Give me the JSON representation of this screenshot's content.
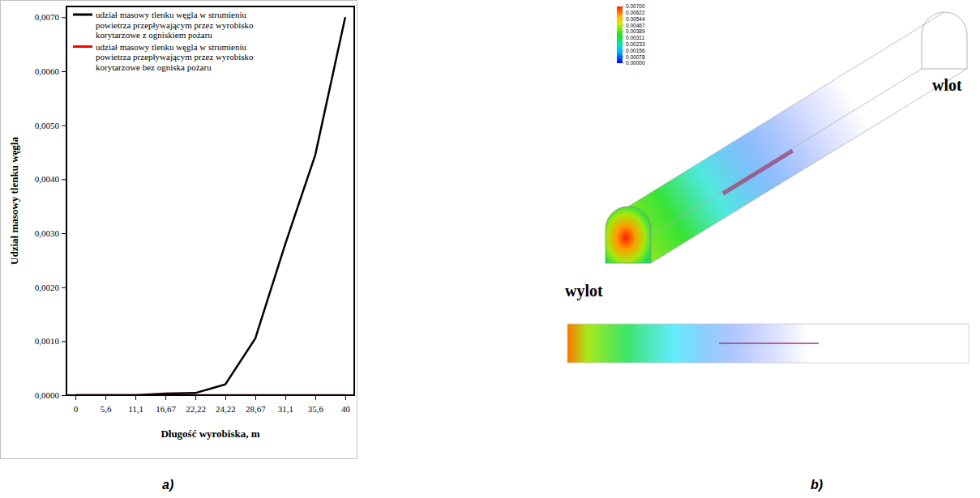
{
  "chart_data": [
    {
      "type": "line",
      "panel_label": "a)",
      "xlabel": "Długość wyrobiska, m",
      "ylabel": "Udział masowy tlenku węgla",
      "categories": [
        "0",
        "5,6",
        "11,1",
        "16,67",
        "22,22",
        "24,22",
        "28,67",
        "31,1",
        "35,6",
        "40"
      ],
      "series": [
        {
          "name": "udział masowy tlenku węgla w strumieniu powietrza przepływającym przez wyrobisko korytarzowe z ogniskiem pożaru",
          "color": "#000000",
          "values": [
            0,
            0,
            0,
            3e-05,
            4e-05,
            0.0002,
            0.00105,
            0.0028,
            0.00445,
            0.007
          ]
        },
        {
          "name": "udział masowy tlenku węgla w strumieniu powietrza przepływającym przez wyrobisko korytarzowe bez ogniska pożaru",
          "color": "#ff0000",
          "values": [
            0,
            0,
            0,
            0,
            0,
            0,
            0,
            0,
            0,
            0
          ]
        }
      ],
      "ylim": [
        0,
        0.0072
      ],
      "yticks": [
        {
          "value": 0,
          "label": "0,0000"
        },
        {
          "value": 0.001,
          "label": "0,0010"
        },
        {
          "value": 0.002,
          "label": "0,0020"
        },
        {
          "value": 0.003,
          "label": "0,0030"
        },
        {
          "value": 0.004,
          "label": "0,0040"
        },
        {
          "value": 0.005,
          "label": "0,0050"
        },
        {
          "value": 0.006,
          "label": "0,0060"
        },
        {
          "value": 0.007,
          "label": "0,0070"
        }
      ],
      "legend": "upper left",
      "grid": false
    },
    {
      "type": "contour",
      "panel_label": "b)",
      "annotations": [
        "wylot",
        "wlot"
      ],
      "colorbar": {
        "range": [
          0,
          0.007
        ],
        "ticks": [
          {
            "value": 0.007,
            "label": "0.00700"
          },
          0.00622,
          0.00544,
          0.00467,
          0.00389,
          0.00311,
          0.00233,
          0.00156,
          0.00078,
          {
            "value": 0,
            "label": "0.00000"
          }
        ]
      }
    }
  ]
}
